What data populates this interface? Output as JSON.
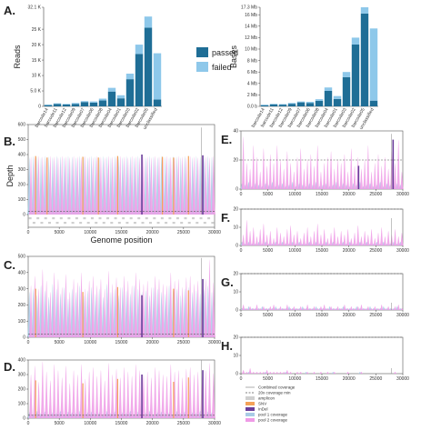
{
  "panel_labels": {
    "A": "A.",
    "B": "B.",
    "C": "C.",
    "D": "D.",
    "E": "E.",
    "F": "F.",
    "G": "G.",
    "H": "H."
  },
  "colors": {
    "passed": "#1f6e96",
    "failed": "#8ec8ea",
    "pool1": "#a9cbe6",
    "pool2": "#ef9be6",
    "snv": "#f4a259",
    "indel": "#6a3d9a",
    "amplicon": "#cfcfcf",
    "combined": "#999999",
    "min20": "#555555"
  },
  "chart_data": [
    {
      "id": "A-reads",
      "type": "bar",
      "stacked": true,
      "categories": [
        "barcode14",
        "barcode11",
        "barcode12",
        "barcode09",
        "barcode07",
        "barcode06",
        "barcode08",
        "barcode04",
        "barcode01",
        "barcode03",
        "barcode02",
        "barcode05",
        "unclassified"
      ],
      "series": [
        {
          "name": "passed",
          "values": [
            0.4,
            0.8,
            0.6,
            0.8,
            1.4,
            1.2,
            1.9,
            4.8,
            2.6,
            8.8,
            17,
            25.5,
            2.2
          ]
        },
        {
          "name": "failed",
          "values": [
            0.2,
            0.2,
            0.2,
            0.3,
            0.3,
            0.4,
            0.6,
            1.2,
            1.0,
            1.8,
            3.0,
            3.6,
            15
          ]
        }
      ],
      "ylabel": "Reads",
      "ylim": [
        0,
        32.1
      ],
      "yticks": [
        {
          "v": 0,
          "label": "0"
        },
        {
          "v": 5,
          "label": "5.0 K"
        },
        {
          "v": 10,
          "label": "10 K"
        },
        {
          "v": 15,
          "label": "15 K"
        },
        {
          "v": 20,
          "label": "20 K"
        },
        {
          "v": 25,
          "label": "25 K"
        },
        {
          "v": 32.1,
          "label": "32.1 K"
        }
      ],
      "legend": [
        "passed",
        "failed"
      ]
    },
    {
      "id": "A-bases",
      "type": "bar",
      "stacked": true,
      "categories": [
        "barcode14",
        "barcode11",
        "barcode12",
        "barcode09",
        "barcode07",
        "barcode06",
        "barcode08",
        "barcode04",
        "barcode01",
        "barcode03",
        "barcode02",
        "barcode05",
        "unclassified"
      ],
      "series": [
        {
          "name": "passed",
          "values": [
            0.2,
            0.35,
            0.3,
            0.45,
            0.7,
            0.6,
            0.95,
            2.7,
            1.3,
            5.1,
            10.8,
            16.2,
            1.0
          ]
        },
        {
          "name": "failed",
          "values": [
            0.1,
            0.1,
            0.1,
            0.15,
            0.15,
            0.2,
            0.3,
            0.6,
            0.5,
            0.9,
            1.2,
            1.1,
            12.6
          ]
        }
      ],
      "ylabel": "Bases",
      "ylim": [
        0,
        17.3
      ],
      "yticks": [
        {
          "v": 0,
          "label": "0.0 b"
        },
        {
          "v": 2,
          "label": "2 Mb"
        },
        {
          "v": 4,
          "label": "4 Mb"
        },
        {
          "v": 6,
          "label": "6 Mb"
        },
        {
          "v": 8,
          "label": "8 Mb"
        },
        {
          "v": 10,
          "label": "10 Mb"
        },
        {
          "v": 12,
          "label": "12 Mb"
        },
        {
          "v": 14,
          "label": "14 Mb"
        },
        {
          "v": 16,
          "label": "16 Mb"
        },
        {
          "v": 17.3,
          "label": "17.3 Mb"
        }
      ]
    },
    {
      "id": "B",
      "type": "area",
      "ylim": [
        0,
        600
      ],
      "xlim": [
        0,
        30000
      ],
      "yticks": [
        0,
        100,
        200,
        300,
        400,
        500,
        600
      ],
      "xticks": [
        0,
        5000,
        10000,
        15000,
        20000,
        25000,
        30000
      ],
      "ylabel": "Depth",
      "xlabel": "Genome position",
      "pool1_peak": [
        380,
        390,
        385,
        380,
        390,
        385,
        380,
        390,
        385,
        380,
        390,
        385,
        380,
        390,
        385,
        380,
        390,
        385,
        380,
        390,
        385,
        380,
        390,
        385,
        380,
        390,
        385,
        380,
        390,
        385,
        380,
        390,
        385,
        380,
        390,
        385,
        380,
        390,
        385,
        380,
        390,
        385,
        380,
        390,
        385,
        380,
        390,
        385
      ],
      "pool2_peak": [
        385,
        380,
        390,
        385,
        380,
        390,
        385,
        380,
        390,
        385,
        380,
        390,
        385,
        380,
        390,
        385,
        380,
        390,
        385,
        380,
        390,
        385,
        380,
        390,
        385,
        380,
        390,
        385,
        380,
        390,
        385,
        380,
        390,
        385,
        380,
        390,
        385,
        380,
        390,
        385,
        380,
        390,
        385,
        380,
        390,
        385,
        380,
        390
      ],
      "variants": [
        {
          "pos": 1200,
          "kind": "snv",
          "h": 390
        },
        {
          "pos": 3050,
          "kind": "snv",
          "h": 380
        },
        {
          "pos": 8800,
          "kind": "snv",
          "h": 385
        },
        {
          "pos": 11300,
          "kind": "snv",
          "h": 380
        },
        {
          "pos": 14400,
          "kind": "snv",
          "h": 390
        },
        {
          "pos": 18300,
          "kind": "indel",
          "h": 400
        },
        {
          "pos": 21600,
          "kind": "snv",
          "h": 385
        },
        {
          "pos": 23400,
          "kind": "snv",
          "h": 380
        },
        {
          "pos": 25800,
          "kind": "snv",
          "h": 390
        },
        {
          "pos": 28100,
          "kind": "indel",
          "h": 395
        }
      ],
      "combined_max": 580,
      "min_line": 20,
      "has_amplicons": true
    },
    {
      "id": "C",
      "type": "area",
      "ylim": [
        0,
        500
      ],
      "xlim": [
        0,
        30000
      ],
      "yticks": [
        0,
        100,
        200,
        300,
        400,
        500
      ],
      "xticks": [
        0,
        5000,
        10000,
        15000,
        20000,
        25000,
        30000
      ],
      "pool1_peak": [
        280,
        300,
        260,
        320,
        290,
        250,
        330,
        300,
        270,
        310,
        240,
        300,
        280,
        320,
        260,
        290,
        310,
        270,
        300,
        250,
        330,
        280,
        300,
        260,
        310,
        290,
        270,
        320,
        300,
        280,
        290,
        260,
        310,
        300,
        280,
        270,
        320,
        290,
        300,
        260,
        300,
        310,
        280,
        290,
        270,
        300,
        320,
        280
      ],
      "pool2_peak": [
        320,
        380,
        300,
        420,
        350,
        280,
        400,
        360,
        310,
        390,
        280,
        360,
        340,
        400,
        300,
        350,
        380,
        320,
        360,
        300,
        410,
        330,
        370,
        310,
        380,
        350,
        320,
        400,
        360,
        330,
        350,
        310,
        380,
        360,
        330,
        320,
        400,
        350,
        360,
        310,
        370,
        380,
        330,
        350,
        320,
        360,
        480,
        340
      ],
      "variants": [
        {
          "pos": 1200,
          "kind": "snv",
          "h": 300
        },
        {
          "pos": 8800,
          "kind": "snv",
          "h": 280
        },
        {
          "pos": 14400,
          "kind": "snv",
          "h": 310
        },
        {
          "pos": 18300,
          "kind": "indel",
          "h": 260
        },
        {
          "pos": 23400,
          "kind": "snv",
          "h": 300
        },
        {
          "pos": 25800,
          "kind": "snv",
          "h": 290
        },
        {
          "pos": 28100,
          "kind": "indel",
          "h": 360
        }
      ],
      "combined_max": 490,
      "min_line": 20,
      "has_amplicons": false
    },
    {
      "id": "D",
      "type": "area",
      "ylim": [
        0,
        400
      ],
      "xlim": [
        0,
        30000
      ],
      "yticks": [
        0,
        100,
        200,
        300,
        400
      ],
      "xticks": [
        0,
        5000,
        10000,
        15000,
        20000,
        25000,
        30000
      ],
      "pool1_peak": [
        40,
        30,
        50,
        35,
        45,
        30,
        40,
        35,
        50,
        30,
        45,
        40,
        35,
        50,
        30,
        40,
        45,
        35,
        40,
        30,
        50,
        35,
        45,
        30,
        40,
        35,
        50,
        30,
        45,
        40,
        35,
        50,
        30,
        40,
        45,
        35,
        40,
        30,
        50,
        35,
        45,
        30,
        40,
        35,
        50,
        30,
        45,
        40
      ],
      "pool2_peak": [
        300,
        360,
        250,
        390,
        320,
        260,
        370,
        330,
        280,
        360,
        240,
        330,
        300,
        370,
        270,
        320,
        350,
        290,
        330,
        260,
        380,
        300,
        340,
        280,
        350,
        320,
        290,
        370,
        330,
        300,
        320,
        280,
        350,
        330,
        300,
        290,
        370,
        320,
        330,
        280,
        340,
        350,
        300,
        320,
        290,
        330,
        380,
        310
      ],
      "variants": [
        {
          "pos": 1200,
          "kind": "snv",
          "h": 260
        },
        {
          "pos": 8800,
          "kind": "snv",
          "h": 240
        },
        {
          "pos": 14400,
          "kind": "snv",
          "h": 270
        },
        {
          "pos": 18300,
          "kind": "indel",
          "h": 300
        },
        {
          "pos": 23400,
          "kind": "snv",
          "h": 250
        },
        {
          "pos": 25800,
          "kind": "snv",
          "h": 280
        },
        {
          "pos": 28100,
          "kind": "indel",
          "h": 330
        }
      ],
      "combined_max": 400,
      "min_line": 20,
      "has_amplicons": false,
      "legend": [
        "Combined coverage",
        "20x coverage min",
        "amplicon",
        "SNV",
        "InDel",
        "pool 1 coverage",
        "pool 2 coverage"
      ]
    },
    {
      "id": "E",
      "type": "area",
      "ylim": [
        0,
        40
      ],
      "xlim": [
        0,
        30000
      ],
      "yticks": [
        0,
        20,
        40
      ],
      "xticks": [
        0,
        5000,
        10000,
        15000,
        20000,
        25000,
        30000
      ],
      "pool1_peak": [
        4,
        3,
        5,
        2,
        4,
        3,
        2,
        4,
        3,
        5,
        2,
        3,
        4,
        2,
        3,
        5,
        2,
        4,
        3,
        2,
        4,
        3,
        5,
        2,
        3,
        4,
        2,
        3,
        5,
        2,
        4,
        3,
        2,
        4,
        3,
        5,
        2,
        3,
        4,
        2,
        3,
        5,
        2,
        4,
        3,
        2,
        4,
        3
      ],
      "pool2_peak": [
        36,
        18,
        14,
        30,
        22,
        12,
        28,
        16,
        24,
        18,
        30,
        20,
        14,
        26,
        18,
        12,
        22,
        28,
        14,
        20,
        24,
        16,
        30,
        12,
        18,
        22,
        26,
        14,
        20,
        18,
        24,
        12,
        28,
        16,
        22,
        14,
        20,
        30,
        12,
        18,
        24,
        16,
        22,
        14,
        26,
        18,
        34,
        12
      ],
      "variants": [
        {
          "pos": 21800,
          "kind": "indel",
          "h": 16
        },
        {
          "pos": 28200,
          "kind": "indel",
          "h": 34
        }
      ],
      "combined_max": 38,
      "min_line": 20,
      "has_amplicons": false
    },
    {
      "id": "F",
      "type": "area",
      "ylim": [
        0,
        20
      ],
      "xlim": [
        0,
        30000
      ],
      "yticks": [
        0,
        10,
        20
      ],
      "xticks": [
        0,
        5000,
        10000,
        15000,
        20000,
        25000,
        30000
      ],
      "pool1_peak": [
        2,
        1,
        2,
        1,
        1,
        2,
        1,
        2,
        1,
        1,
        2,
        1,
        2,
        1,
        1,
        2,
        1,
        2,
        1,
        1,
        2,
        1,
        2,
        1,
        1,
        2,
        1,
        2,
        1,
        1,
        2,
        1,
        2,
        1,
        1,
        2,
        1,
        2,
        1,
        1,
        2,
        1,
        2,
        1,
        1,
        2,
        1,
        2
      ],
      "pool2_peak": [
        6,
        14,
        8,
        10,
        5,
        9,
        12,
        6,
        8,
        4,
        10,
        7,
        5,
        9,
        11,
        6,
        8,
        4,
        7,
        10,
        5,
        8,
        12,
        6,
        9,
        4,
        7,
        10,
        5,
        8,
        6,
        9,
        4,
        7,
        11,
        5,
        8,
        6,
        9,
        4,
        7,
        10,
        5,
        8,
        6,
        9,
        5,
        7
      ],
      "variants": [],
      "combined_max": 15,
      "min_line": 20,
      "has_amplicons": false
    },
    {
      "id": "G",
      "type": "area",
      "ylim": [
        0,
        20
      ],
      "xlim": [
        0,
        30000
      ],
      "yticks": [
        0,
        10,
        20
      ],
      "xticks": [
        0,
        5000,
        10000,
        15000,
        20000,
        25000,
        30000
      ],
      "pool1_peak": [
        1,
        1,
        2,
        1,
        1,
        1,
        2,
        1,
        1,
        1,
        2,
        1,
        1,
        1,
        2,
        1,
        1,
        1,
        2,
        1,
        1,
        1,
        2,
        1,
        1,
        1,
        2,
        1,
        1,
        1,
        2,
        1,
        1,
        1,
        2,
        1,
        1,
        1,
        2,
        1,
        1,
        1,
        2,
        1,
        1,
        1,
        2,
        1
      ],
      "pool2_peak": [
        3,
        1,
        2,
        1,
        3,
        1,
        2,
        1,
        2,
        3,
        1,
        2,
        1,
        3,
        1,
        2,
        1,
        2,
        1,
        3,
        1,
        2,
        1,
        2,
        3,
        1,
        2,
        1,
        2,
        1,
        3,
        1,
        2,
        1,
        2,
        3,
        1,
        2,
        1,
        2,
        1,
        3,
        1,
        2,
        1,
        2,
        3,
        1
      ],
      "variants": [],
      "combined_max": 4,
      "min_line": 20,
      "has_amplicons": false
    },
    {
      "id": "H",
      "type": "area",
      "ylim": [
        0,
        20
      ],
      "xlim": [
        0,
        30000
      ],
      "yticks": [
        0,
        10,
        20
      ],
      "xticks": [
        0,
        5000,
        10000,
        15000,
        20000,
        25000,
        30000
      ],
      "pool1_peak": [
        0,
        0,
        1,
        0,
        0,
        0,
        0,
        1,
        0,
        0,
        0,
        0,
        0,
        1,
        0,
        0,
        0,
        0,
        0,
        1,
        0,
        0,
        0,
        0,
        0,
        0,
        0,
        1,
        0,
        0,
        0,
        0,
        0,
        0,
        0,
        1,
        0,
        0,
        0,
        0,
        0,
        0,
        0,
        0,
        0,
        0,
        0,
        0
      ],
      "pool2_peak": [
        2,
        1,
        3,
        1,
        1,
        1,
        1,
        2,
        1,
        1,
        1,
        1,
        1,
        2,
        1,
        0,
        1,
        1,
        0,
        1,
        0,
        1,
        0,
        1,
        0,
        1,
        0,
        1,
        0,
        0,
        0,
        1,
        0,
        0,
        0,
        1,
        0,
        0,
        0,
        0,
        0,
        0,
        0,
        0,
        0,
        1,
        0,
        0
      ],
      "variants": [],
      "combined_max": 3,
      "min_line": 20,
      "has_amplicons": false
    }
  ]
}
